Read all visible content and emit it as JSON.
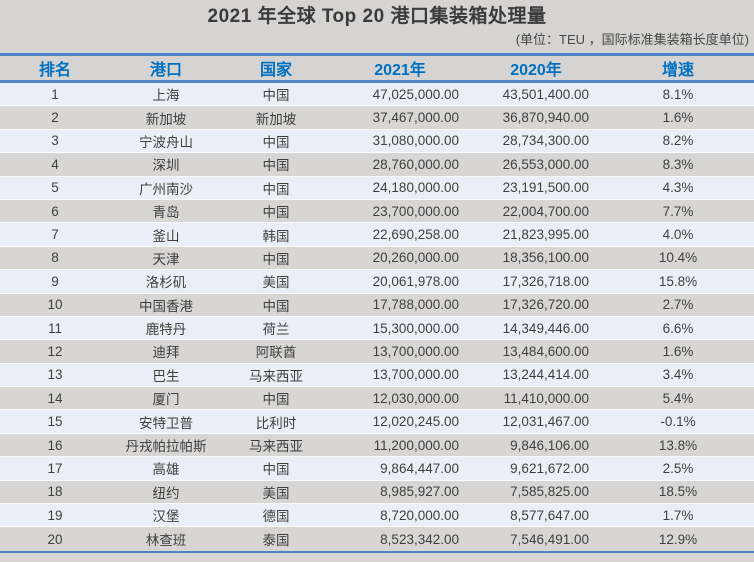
{
  "page": {
    "title": "2021 年全球 Top 20 港口集装箱处理量",
    "subtitle": "(单位：TEU ，国际标准集装箱长度单位)"
  },
  "chart_data": {
    "type": "table",
    "title": "2021 年全球 Top 20 港口集装箱处理量",
    "subtitle": "(单位：TEU ，国际标准集装箱长度单位)",
    "unit": "TEU",
    "columns": [
      "排名",
      "港口",
      "国家",
      "2021年",
      "2020年",
      "增速"
    ],
    "rows": [
      [
        "1",
        "上海",
        "中国",
        "47,025,000.00",
        "43,501,400.00",
        "8.1%"
      ],
      [
        "2",
        "新加坡",
        "新加坡",
        "37,467,000.00",
        "36,870,940.00",
        "1.6%"
      ],
      [
        "3",
        "宁波舟山",
        "中国",
        "31,080,000.00",
        "28,734,300.00",
        "8.2%"
      ],
      [
        "4",
        "深圳",
        "中国",
        "28,760,000.00",
        "26,553,000.00",
        "8.3%"
      ],
      [
        "5",
        "广州南沙",
        "中国",
        "24,180,000.00",
        "23,191,500.00",
        "4.3%"
      ],
      [
        "6",
        "青岛",
        "中国",
        "23,700,000.00",
        "22,004,700.00",
        "7.7%"
      ],
      [
        "7",
        "釜山",
        "韩国",
        "22,690,258.00",
        "21,823,995.00",
        "4.0%"
      ],
      [
        "8",
        "天津",
        "中国",
        "20,260,000.00",
        "18,356,100.00",
        "10.4%"
      ],
      [
        "9",
        "洛杉矶",
        "美国",
        "20,061,978.00",
        "17,326,718.00",
        "15.8%"
      ],
      [
        "10",
        "中国香港",
        "中国",
        "17,788,000.00",
        "17,326,720.00",
        "2.7%"
      ],
      [
        "11",
        "鹿特丹",
        "荷兰",
        "15,300,000.00",
        "14,349,446.00",
        "6.6%"
      ],
      [
        "12",
        "迪拜",
        "阿联酋",
        "13,700,000.00",
        "13,484,600.00",
        "1.6%"
      ],
      [
        "13",
        "巴生",
        "马来西亚",
        "13,700,000.00",
        "13,244,414.00",
        "3.4%"
      ],
      [
        "14",
        "厦门",
        "中国",
        "12,030,000.00",
        "11,410,000.00",
        "5.4%"
      ],
      [
        "15",
        "安特卫普",
        "比利时",
        "12,020,245.00",
        "12,031,467.00",
        "-0.1%"
      ],
      [
        "16",
        "丹戎帕拉帕斯",
        "马来西亚",
        "11,200,000.00",
        "9,846,106.00",
        "13.8%"
      ],
      [
        "17",
        "高雄",
        "中国",
        "9,864,447.00",
        "9,621,672.00",
        "2.5%"
      ],
      [
        "18",
        "纽约",
        "美国",
        "8,985,927.00",
        "7,585,825.00",
        "18.5%"
      ],
      [
        "19",
        "汉堡",
        "德国",
        "8,720,000.00",
        "8,577,647.00",
        "1.7%"
      ],
      [
        "20",
        "林查班",
        "泰国",
        "8,523,342.00",
        "7,546,491.00",
        "12.9%"
      ]
    ]
  },
  "colors": {
    "page_background": "#d5d4d2",
    "table_border_blue": "#4e86c4",
    "header_text_blue": "#0070c0",
    "odd_row_background": "#eaeff7",
    "even_row_background": "#d7d6d4",
    "body_text": "#3f3f3f",
    "title_text": "#3b3b3b"
  }
}
